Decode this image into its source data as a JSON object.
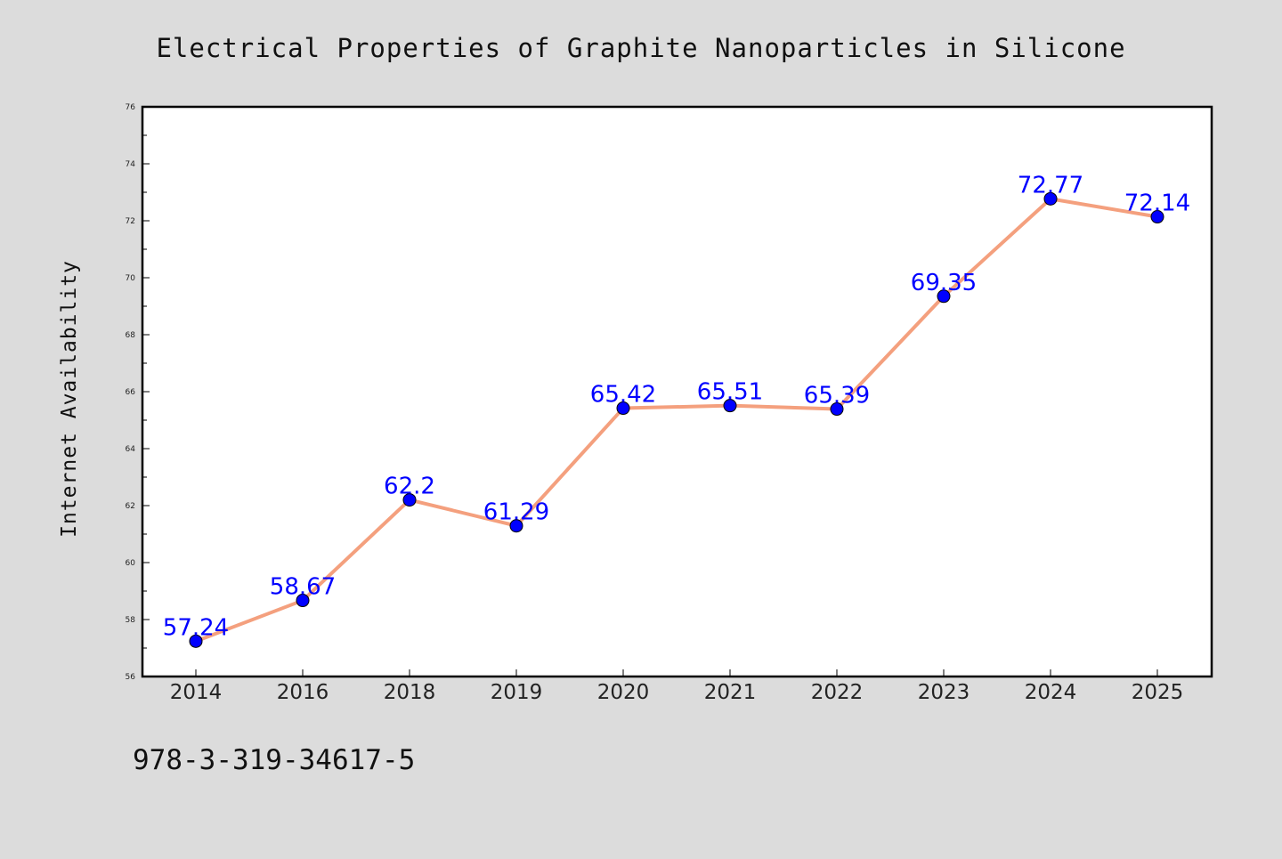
{
  "chart_data": {
    "type": "line",
    "title": "Electrical Properties of Graphite Nanoparticles in Silicone",
    "xlabel": "",
    "ylabel": "Internet Availability",
    "categories": [
      "2014",
      "2016",
      "2018",
      "2019",
      "2020",
      "2021",
      "2022",
      "2023",
      "2024",
      "2025"
    ],
    "series": [
      {
        "values": [
          57.24,
          58.67,
          62.2,
          61.29,
          65.42,
          65.51,
          65.39,
          69.35,
          72.77,
          72.14
        ],
        "labels": [
          "57.24",
          "58.67",
          "62.2",
          "61.29",
          "65.42",
          "65.51",
          "65.39",
          "69.35",
          "72.77",
          "72.14"
        ],
        "line_color": "#f4a07e",
        "marker_color": "#0000ff"
      }
    ],
    "ylim": [
      56,
      76
    ],
    "yticks": [
      "56",
      "58",
      "60",
      "62",
      "64",
      "66",
      "68",
      "70",
      "72",
      "74",
      "76"
    ],
    "grid": false,
    "legend": "none"
  },
  "footer": {
    "code": "978-3-319-34617-5"
  },
  "colors": {
    "background": "#dcdcdc",
    "plot_background": "#ffffff",
    "axis": "#000000"
  }
}
